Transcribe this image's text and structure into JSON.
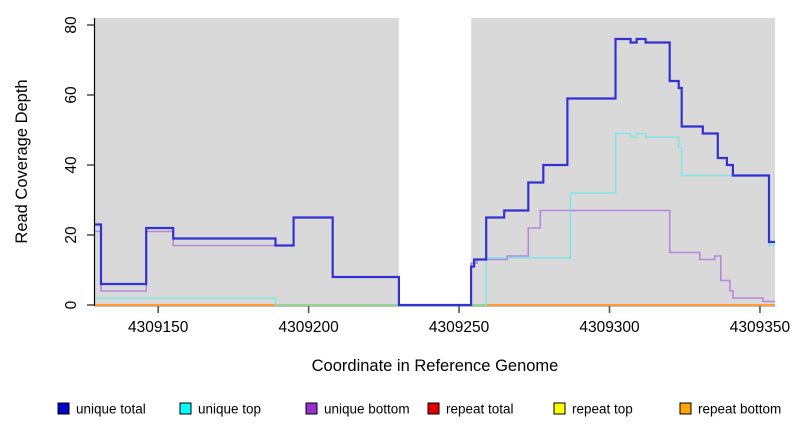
{
  "chart_data": {
    "type": "line",
    "subtype": "step-coverage",
    "title": "",
    "xlabel": "Coordinate in Reference Genome",
    "ylabel": "Read Coverage Depth",
    "xlim": [
      4309129,
      4309355
    ],
    "ylim": [
      0,
      82
    ],
    "x_ticks": [
      4309150,
      4309200,
      4309250,
      4309300,
      4309350
    ],
    "y_ticks": [
      0,
      20,
      40,
      60,
      80
    ],
    "grid": false,
    "plot_background_color": "#d9d9d9",
    "gap_region": {
      "x_start": 4309230,
      "x_end": 4309254,
      "color": "#ffffff"
    },
    "axis_color": "#000000",
    "series": [
      {
        "name": "repeat total",
        "line_color": "#e00000",
        "legend_color": "#e00000",
        "width": 1.6,
        "points": [
          [
            4309129,
            0
          ],
          [
            4309355,
            0
          ]
        ]
      },
      {
        "name": "repeat top",
        "line_color": "#ffff00",
        "legend_color": "#ffff00",
        "width": 1.6,
        "points": [
          [
            4309129,
            0
          ],
          [
            4309355,
            0
          ]
        ]
      },
      {
        "name": "repeat bottom",
        "line_color": "#ff9d33",
        "legend_color": "#ffa500",
        "width": 2,
        "points": [
          [
            4309129,
            0
          ],
          [
            4309355,
            0
          ]
        ]
      },
      {
        "name": "unique top",
        "line_color": "#82e6e6",
        "legend_color": "#00ffff",
        "width": 1.6,
        "points": [
          [
            4309129,
            2
          ],
          [
            4309189,
            0
          ],
          [
            4309259,
            13.5
          ],
          [
            4309287,
            32
          ],
          [
            4309302,
            49
          ],
          [
            4309307,
            48
          ],
          [
            4309309,
            49
          ],
          [
            4309312,
            48
          ],
          [
            4309323,
            45
          ],
          [
            4309324,
            37
          ],
          [
            4309353,
            17
          ],
          [
            4309355,
            17
          ]
        ]
      },
      {
        "name": "unique bottom",
        "line_color": "#b687de",
        "legend_color": "#9932cc",
        "width": 1.6,
        "points": [
          [
            4309129,
            21
          ],
          [
            4309131,
            4
          ],
          [
            4309146,
            21
          ],
          [
            4309155,
            17
          ],
          [
            4309195,
            25
          ],
          [
            4309208,
            8
          ],
          [
            4309230,
            0
          ],
          [
            4309254,
            12
          ],
          [
            4309256,
            13
          ],
          [
            4309266,
            14
          ],
          [
            4309273,
            22
          ],
          [
            4309277,
            27
          ],
          [
            4309320,
            15
          ],
          [
            4309330,
            13
          ],
          [
            4309335,
            14
          ],
          [
            4309337,
            7
          ],
          [
            4309340,
            4
          ],
          [
            4309341,
            2
          ],
          [
            4309351,
            1
          ],
          [
            4309355,
            1
          ]
        ]
      },
      {
        "name": "unique total",
        "line_color": "#3232d2",
        "legend_color": "#0000cd",
        "width": 2.2,
        "points": [
          [
            4309129,
            23
          ],
          [
            4309131,
            6
          ],
          [
            4309146,
            22
          ],
          [
            4309155,
            19
          ],
          [
            4309189,
            17
          ],
          [
            4309195,
            25
          ],
          [
            4309208,
            8
          ],
          [
            4309230,
            0
          ],
          [
            4309254,
            11
          ],
          [
            4309255,
            13
          ],
          [
            4309259,
            25
          ],
          [
            4309265,
            27
          ],
          [
            4309273,
            35
          ],
          [
            4309278,
            40
          ],
          [
            4309286,
            59
          ],
          [
            4309302,
            76
          ],
          [
            4309307,
            75
          ],
          [
            4309309,
            76
          ],
          [
            4309312,
            75
          ],
          [
            4309320,
            64
          ],
          [
            4309323,
            62
          ],
          [
            4309324,
            51
          ],
          [
            4309331,
            49
          ],
          [
            4309336,
            42
          ],
          [
            4309339,
            40
          ],
          [
            4309341,
            37
          ],
          [
            4309353,
            18
          ],
          [
            4309355,
            18
          ]
        ]
      }
    ],
    "overlap_segments": [
      {
        "description": "unique-top at zero blended over repeat-bottom",
        "color": "#92d792",
        "y": 0,
        "x_start": 4309189,
        "x_end": 4309230
      },
      {
        "description": "unique-top at zero blended over repeat-bottom",
        "color": "#92d792",
        "y": 0,
        "x_start": 4309254,
        "x_end": 4309259
      }
    ],
    "legend_position": "bottom"
  },
  "legend": {
    "items": [
      {
        "label": "unique total",
        "color": "#0000cd"
      },
      {
        "label": "unique top",
        "color": "#00ffff"
      },
      {
        "label": "unique bottom",
        "color": "#9932cc"
      },
      {
        "label": "repeat total",
        "color": "#e00000"
      },
      {
        "label": "repeat top",
        "color": "#ffff00"
      },
      {
        "label": "repeat bottom",
        "color": "#ffa500"
      }
    ]
  }
}
